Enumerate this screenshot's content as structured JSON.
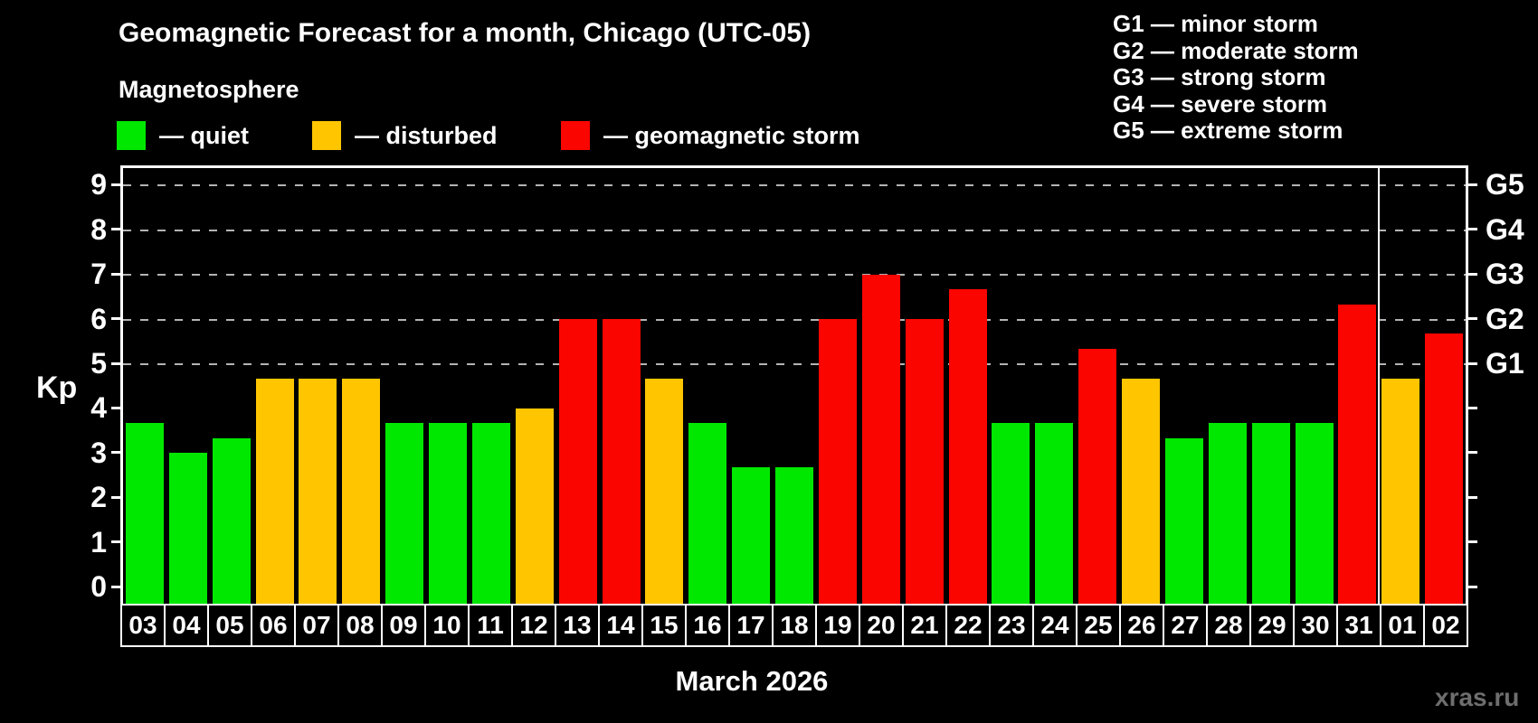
{
  "header": {
    "title": "Geomagnetic Forecast for a month, Chicago (UTC-05)",
    "subtitle": "Magnetosphere"
  },
  "magnetosphere_legend": [
    {
      "key": "quiet",
      "label": "— quiet",
      "color": "#00e800"
    },
    {
      "key": "disturbed",
      "label": "— disturbed",
      "color": "#ffc600"
    },
    {
      "key": "storm",
      "label": "— geomagnetic storm",
      "color": "#fb0500"
    }
  ],
  "storm_scale_legend": [
    "G1 — minor storm",
    "G2 — moderate storm",
    "G3 — strong storm",
    "G4 — severe storm",
    "G5 — extreme storm"
  ],
  "chart_data": {
    "type": "bar",
    "title": "Geomagnetic Forecast for a month, Chicago (UTC-05)",
    "ylabel": "Kp",
    "xlabel": "March 2026",
    "ylim": [
      0,
      9
    ],
    "y_ticks": [
      0,
      1,
      2,
      3,
      4,
      5,
      6,
      7,
      8,
      9
    ],
    "gridlines_at": [
      5,
      6,
      7,
      8,
      9
    ],
    "grid": "dashed horizontal lines at storm levels only",
    "legend_position": "top",
    "right_axis": [
      {
        "label": "G1",
        "kp": 5
      },
      {
        "label": "G2",
        "kp": 6
      },
      {
        "label": "G3",
        "kp": 7
      },
      {
        "label": "G4",
        "kp": 8
      },
      {
        "label": "G5",
        "kp": 9
      }
    ],
    "month_separator_after_index": 28,
    "bars": [
      {
        "day": "03",
        "kp": 3.67,
        "status": "quiet"
      },
      {
        "day": "04",
        "kp": 3.0,
        "status": "quiet"
      },
      {
        "day": "05",
        "kp": 3.33,
        "status": "quiet"
      },
      {
        "day": "06",
        "kp": 4.67,
        "status": "disturbed"
      },
      {
        "day": "07",
        "kp": 4.67,
        "status": "disturbed"
      },
      {
        "day": "08",
        "kp": 4.67,
        "status": "disturbed"
      },
      {
        "day": "09",
        "kp": 3.67,
        "status": "quiet"
      },
      {
        "day": "10",
        "kp": 3.67,
        "status": "quiet"
      },
      {
        "day": "11",
        "kp": 3.67,
        "status": "quiet"
      },
      {
        "day": "12",
        "kp": 4.0,
        "status": "disturbed"
      },
      {
        "day": "13",
        "kp": 6.0,
        "status": "storm"
      },
      {
        "day": "14",
        "kp": 6.0,
        "status": "storm"
      },
      {
        "day": "15",
        "kp": 4.67,
        "status": "disturbed"
      },
      {
        "day": "16",
        "kp": 3.67,
        "status": "quiet"
      },
      {
        "day": "17",
        "kp": 2.67,
        "status": "quiet"
      },
      {
        "day": "18",
        "kp": 2.67,
        "status": "quiet"
      },
      {
        "day": "19",
        "kp": 6.0,
        "status": "storm"
      },
      {
        "day": "20",
        "kp": 7.0,
        "status": "storm"
      },
      {
        "day": "21",
        "kp": 6.0,
        "status": "storm"
      },
      {
        "day": "22",
        "kp": 6.67,
        "status": "storm"
      },
      {
        "day": "23",
        "kp": 3.67,
        "status": "quiet"
      },
      {
        "day": "24",
        "kp": 3.67,
        "status": "quiet"
      },
      {
        "day": "25",
        "kp": 5.33,
        "status": "storm"
      },
      {
        "day": "26",
        "kp": 4.67,
        "status": "disturbed"
      },
      {
        "day": "27",
        "kp": 3.33,
        "status": "quiet"
      },
      {
        "day": "28",
        "kp": 3.67,
        "status": "quiet"
      },
      {
        "day": "29",
        "kp": 3.67,
        "status": "quiet"
      },
      {
        "day": "30",
        "kp": 3.67,
        "status": "quiet"
      },
      {
        "day": "31",
        "kp": 6.33,
        "status": "storm"
      },
      {
        "day": "01",
        "kp": 4.67,
        "status": "disturbed"
      },
      {
        "day": "02",
        "kp": 5.67,
        "status": "storm"
      }
    ]
  },
  "footer": {
    "month_label": "March 2026",
    "watermark": "xras.ru"
  },
  "colors": {
    "background": "#000000",
    "text": "#ffffff",
    "grid": "#b4b4b4",
    "axis": "#ffffff",
    "quiet": "#00e800",
    "disturbed": "#ffc600",
    "storm": "#fb0500",
    "watermark": "#6e6e6e"
  }
}
